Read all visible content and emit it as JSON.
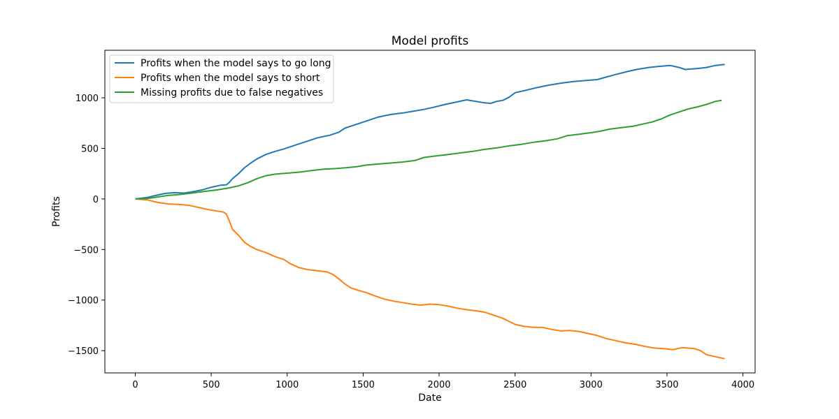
{
  "chart_data": {
    "type": "line",
    "title": "Model profits",
    "xlabel": "Date",
    "ylabel": "Profits",
    "xlim": [
      -200,
      4080
    ],
    "ylim": [
      -1720,
      1470
    ],
    "xticks": [
      0,
      500,
      1000,
      1500,
      2000,
      2500,
      3000,
      3500,
      4000
    ],
    "xtick_labels": [
      "0",
      "500",
      "1000",
      "1500",
      "2000",
      "2500",
      "3000",
      "3500",
      "4000"
    ],
    "yticks": [
      -1500,
      -1000,
      -500,
      0,
      500,
      1000
    ],
    "ytick_labels": [
      "−1500",
      "−1000",
      "−500",
      "0",
      "500",
      "1000"
    ],
    "grid": false,
    "legend_position": "top-left",
    "series": [
      {
        "name": "Profits when the model says to go long",
        "color": "#1f77b4",
        "points": [
          [
            0,
            0
          ],
          [
            80,
            15
          ],
          [
            150,
            40
          ],
          [
            200,
            55
          ],
          [
            260,
            62
          ],
          [
            320,
            58
          ],
          [
            380,
            72
          ],
          [
            440,
            90
          ],
          [
            500,
            115
          ],
          [
            560,
            135
          ],
          [
            600,
            140
          ],
          [
            620,
            165
          ],
          [
            640,
            200
          ],
          [
            680,
            250
          ],
          [
            720,
            310
          ],
          [
            760,
            355
          ],
          [
            800,
            395
          ],
          [
            860,
            440
          ],
          [
            920,
            470
          ],
          [
            980,
            495
          ],
          [
            1050,
            530
          ],
          [
            1120,
            565
          ],
          [
            1200,
            605
          ],
          [
            1280,
            630
          ],
          [
            1340,
            660
          ],
          [
            1380,
            700
          ],
          [
            1420,
            720
          ],
          [
            1480,
            750
          ],
          [
            1540,
            780
          ],
          [
            1600,
            810
          ],
          [
            1680,
            835
          ],
          [
            1760,
            850
          ],
          [
            1820,
            865
          ],
          [
            1900,
            885
          ],
          [
            1960,
            905
          ],
          [
            2040,
            935
          ],
          [
            2120,
            960
          ],
          [
            2180,
            980
          ],
          [
            2240,
            965
          ],
          [
            2300,
            950
          ],
          [
            2340,
            945
          ],
          [
            2380,
            965
          ],
          [
            2420,
            975
          ],
          [
            2460,
            1005
          ],
          [
            2500,
            1050
          ],
          [
            2560,
            1070
          ],
          [
            2640,
            1100
          ],
          [
            2720,
            1125
          ],
          [
            2800,
            1145
          ],
          [
            2880,
            1160
          ],
          [
            2960,
            1170
          ],
          [
            3040,
            1180
          ],
          [
            3100,
            1205
          ],
          [
            3160,
            1230
          ],
          [
            3240,
            1260
          ],
          [
            3300,
            1280
          ],
          [
            3380,
            1300
          ],
          [
            3440,
            1310
          ],
          [
            3520,
            1320
          ],
          [
            3580,
            1300
          ],
          [
            3620,
            1280
          ],
          [
            3700,
            1290
          ],
          [
            3760,
            1300
          ],
          [
            3820,
            1320
          ],
          [
            3880,
            1330
          ]
        ]
      },
      {
        "name": "Profits when the model says to short",
        "color": "#ff7f0e",
        "points": [
          [
            0,
            0
          ],
          [
            80,
            -10
          ],
          [
            150,
            -35
          ],
          [
            220,
            -50
          ],
          [
            300,
            -55
          ],
          [
            360,
            -65
          ],
          [
            420,
            -85
          ],
          [
            480,
            -105
          ],
          [
            540,
            -120
          ],
          [
            580,
            -130
          ],
          [
            600,
            -150
          ],
          [
            620,
            -220
          ],
          [
            640,
            -300
          ],
          [
            680,
            -360
          ],
          [
            720,
            -430
          ],
          [
            760,
            -470
          ],
          [
            800,
            -500
          ],
          [
            860,
            -530
          ],
          [
            920,
            -570
          ],
          [
            980,
            -600
          ],
          [
            1020,
            -640
          ],
          [
            1080,
            -680
          ],
          [
            1140,
            -700
          ],
          [
            1200,
            -710
          ],
          [
            1260,
            -720
          ],
          [
            1300,
            -745
          ],
          [
            1340,
            -790
          ],
          [
            1380,
            -840
          ],
          [
            1420,
            -880
          ],
          [
            1460,
            -900
          ],
          [
            1520,
            -925
          ],
          [
            1580,
            -960
          ],
          [
            1640,
            -990
          ],
          [
            1700,
            -1010
          ],
          [
            1760,
            -1025
          ],
          [
            1820,
            -1040
          ],
          [
            1880,
            -1050
          ],
          [
            1940,
            -1040
          ],
          [
            2000,
            -1045
          ],
          [
            2060,
            -1060
          ],
          [
            2120,
            -1080
          ],
          [
            2180,
            -1095
          ],
          [
            2240,
            -1105
          ],
          [
            2300,
            -1120
          ],
          [
            2360,
            -1150
          ],
          [
            2420,
            -1180
          ],
          [
            2460,
            -1210
          ],
          [
            2500,
            -1240
          ],
          [
            2560,
            -1260
          ],
          [
            2620,
            -1270
          ],
          [
            2680,
            -1270
          ],
          [
            2740,
            -1290
          ],
          [
            2800,
            -1305
          ],
          [
            2860,
            -1300
          ],
          [
            2920,
            -1310
          ],
          [
            2980,
            -1330
          ],
          [
            3040,
            -1350
          ],
          [
            3100,
            -1380
          ],
          [
            3160,
            -1400
          ],
          [
            3220,
            -1420
          ],
          [
            3300,
            -1440
          ],
          [
            3360,
            -1460
          ],
          [
            3420,
            -1475
          ],
          [
            3480,
            -1480
          ],
          [
            3540,
            -1490
          ],
          [
            3600,
            -1470
          ],
          [
            3680,
            -1480
          ],
          [
            3720,
            -1500
          ],
          [
            3760,
            -1540
          ],
          [
            3820,
            -1560
          ],
          [
            3880,
            -1580
          ]
        ]
      },
      {
        "name": "Missing profits due to false negatives",
        "color": "#2ca02c",
        "points": [
          [
            0,
            0
          ],
          [
            80,
            5
          ],
          [
            150,
            20
          ],
          [
            220,
            35
          ],
          [
            300,
            45
          ],
          [
            380,
            60
          ],
          [
            460,
            75
          ],
          [
            540,
            90
          ],
          [
            620,
            110
          ],
          [
            680,
            130
          ],
          [
            740,
            160
          ],
          [
            800,
            200
          ],
          [
            860,
            230
          ],
          [
            920,
            245
          ],
          [
            1000,
            255
          ],
          [
            1080,
            265
          ],
          [
            1160,
            280
          ],
          [
            1240,
            295
          ],
          [
            1320,
            300
          ],
          [
            1400,
            310
          ],
          [
            1460,
            320
          ],
          [
            1520,
            335
          ],
          [
            1600,
            345
          ],
          [
            1680,
            355
          ],
          [
            1760,
            365
          ],
          [
            1840,
            380
          ],
          [
            1900,
            410
          ],
          [
            1980,
            425
          ],
          [
            2060,
            440
          ],
          [
            2140,
            455
          ],
          [
            2220,
            470
          ],
          [
            2300,
            490
          ],
          [
            2380,
            505
          ],
          [
            2460,
            525
          ],
          [
            2540,
            540
          ],
          [
            2620,
            560
          ],
          [
            2700,
            575
          ],
          [
            2780,
            595
          ],
          [
            2840,
            625
          ],
          [
            2920,
            640
          ],
          [
            3000,
            655
          ],
          [
            3060,
            670
          ],
          [
            3120,
            690
          ],
          [
            3200,
            705
          ],
          [
            3280,
            720
          ],
          [
            3340,
            740
          ],
          [
            3400,
            760
          ],
          [
            3460,
            790
          ],
          [
            3520,
            830
          ],
          [
            3580,
            860
          ],
          [
            3640,
            890
          ],
          [
            3700,
            910
          ],
          [
            3760,
            935
          ],
          [
            3820,
            965
          ],
          [
            3860,
            975
          ]
        ]
      }
    ]
  }
}
